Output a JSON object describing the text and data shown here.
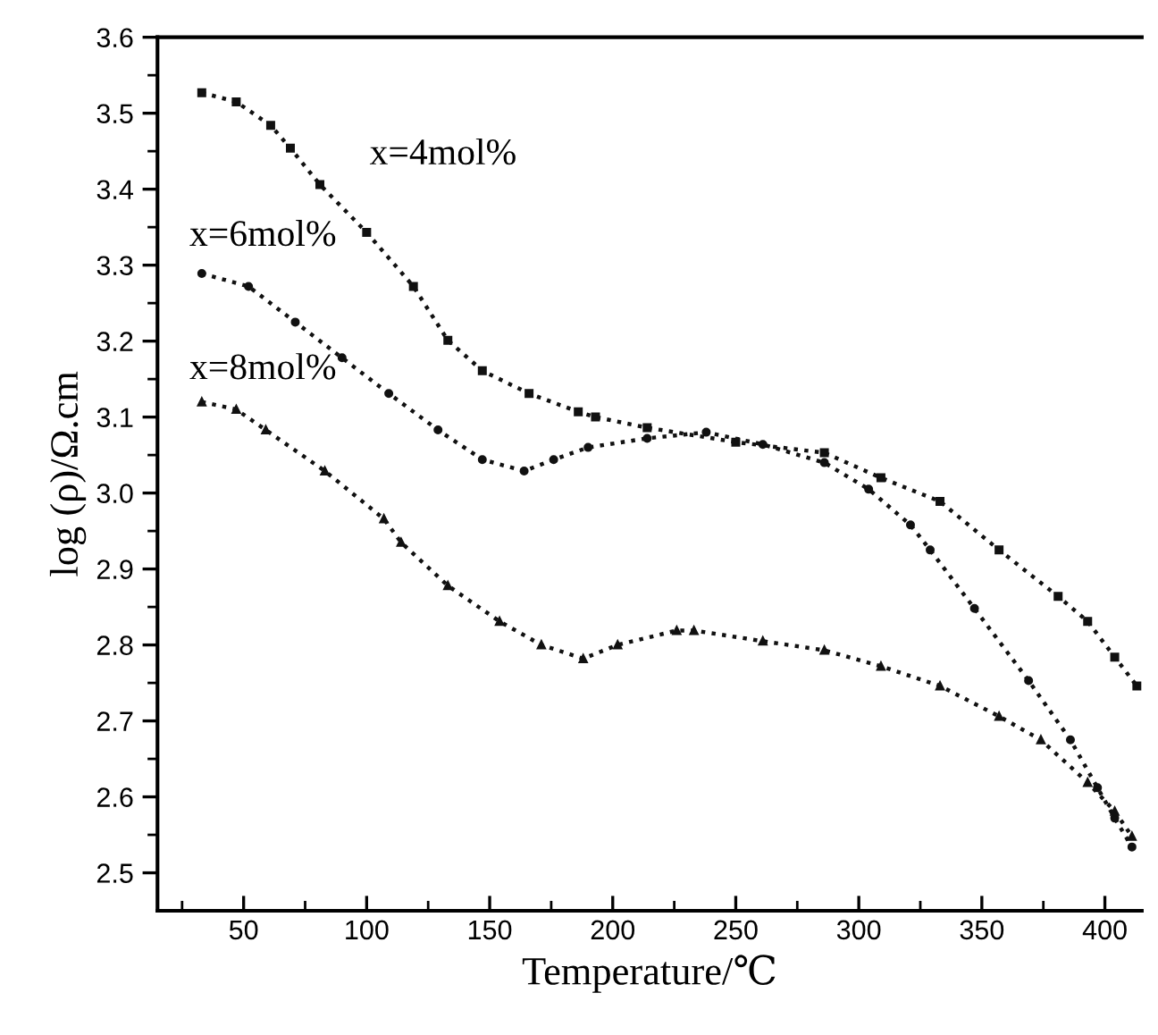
{
  "chart_data": {
    "type": "line",
    "xlabel": "Temperature/℃",
    "ylabel": "log (ρ)/Ω.cm",
    "xlim": [
      15,
      415
    ],
    "ylim": [
      2.45,
      3.6
    ],
    "xticks": [
      50,
      100,
      150,
      200,
      250,
      300,
      350,
      400
    ],
    "yticks": [
      2.5,
      2.6,
      2.7,
      2.8,
      2.9,
      {
        "value": 3.0,
        "label": "3.0"
      },
      3.1,
      3.2,
      3.3,
      3.4,
      3.5,
      3.6
    ],
    "grid": false,
    "legend": false,
    "line_style": "dotted",
    "series": [
      {
        "name": "x=4mol%",
        "color": "#111111",
        "marker": "square",
        "x": [
          33,
          47,
          61,
          69,
          81,
          100,
          119,
          133,
          147,
          166,
          186,
          193,
          214,
          250,
          286,
          309,
          333,
          357,
          381,
          393,
          404,
          413
        ],
        "values": [
          3.527,
          3.515,
          3.484,
          3.454,
          3.406,
          3.343,
          3.272,
          3.201,
          3.161,
          3.131,
          3.107,
          3.1,
          3.086,
          3.067,
          3.053,
          3.02,
          2.989,
          2.925,
          2.864,
          2.831,
          2.784,
          2.746
        ]
      },
      {
        "name": "x=6mol%",
        "color": "#111111",
        "marker": "circle",
        "x": [
          33,
          52,
          71,
          90,
          109,
          129,
          147,
          164,
          176,
          190,
          214,
          238,
          261,
          286,
          304,
          321,
          329,
          347,
          369,
          386,
          397,
          404,
          411
        ],
        "values": [
          3.289,
          3.272,
          3.225,
          3.178,
          3.131,
          3.083,
          3.044,
          3.029,
          3.044,
          3.06,
          3.072,
          3.08,
          3.064,
          3.04,
          3.005,
          2.958,
          2.925,
          2.848,
          2.753,
          2.675,
          2.612,
          2.572,
          2.534
        ]
      },
      {
        "name": "x=8mol%",
        "color": "#111111",
        "marker": "triangle",
        "x": [
          33,
          47,
          59,
          83,
          107,
          114,
          133,
          154,
          171,
          188,
          202,
          226,
          233,
          261,
          286,
          309,
          333,
          357,
          374,
          393,
          404,
          411
        ],
        "values": [
          3.12,
          3.11,
          3.083,
          3.029,
          2.966,
          2.935,
          2.878,
          2.831,
          2.8,
          2.782,
          2.8,
          2.819,
          2.819,
          2.805,
          2.793,
          2.772,
          2.746,
          2.706,
          2.675,
          2.619,
          2.581,
          2.548
        ]
      }
    ]
  }
}
